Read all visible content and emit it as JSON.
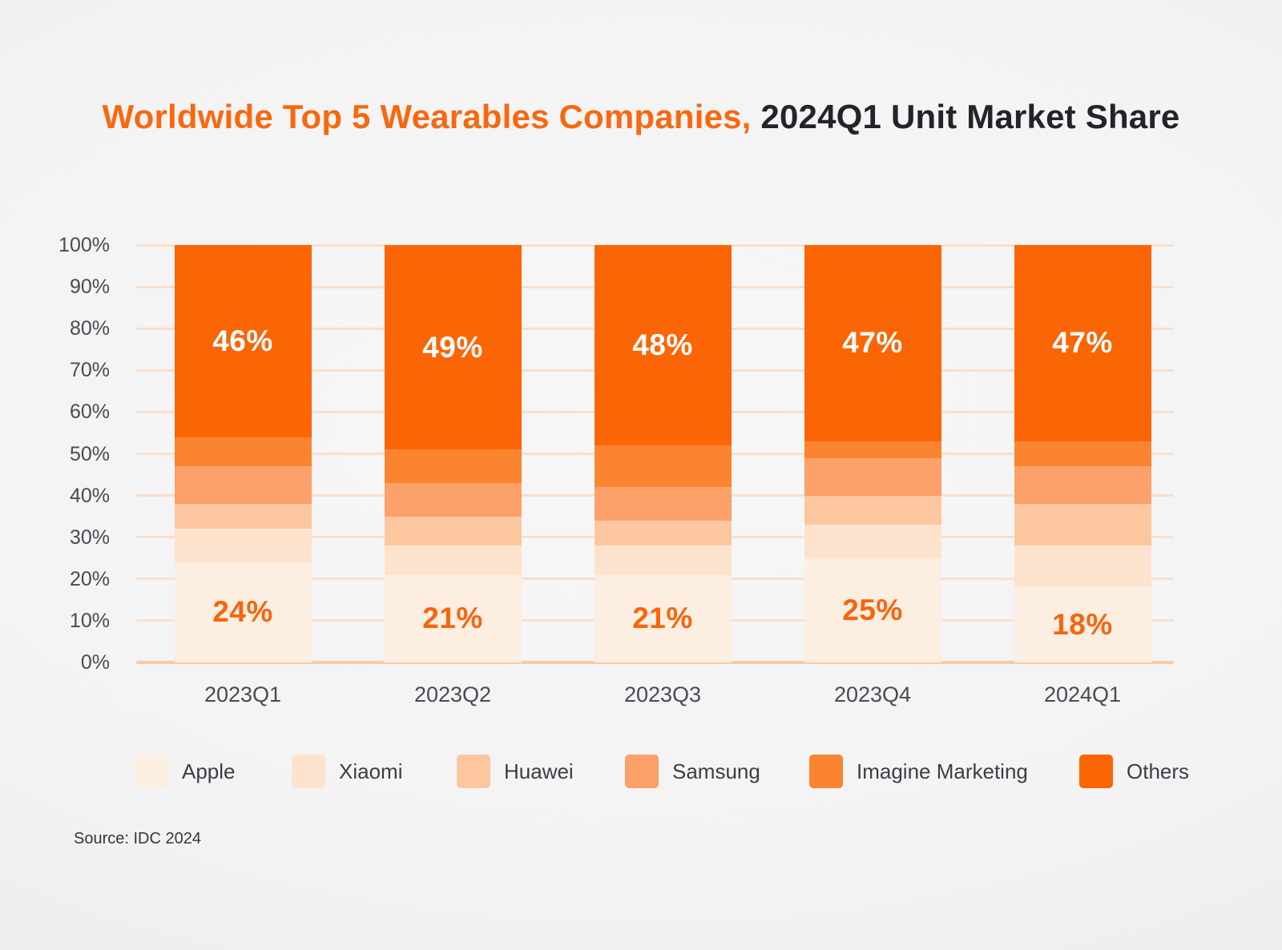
{
  "title": {
    "highlight": "Worldwide Top 5 Wearables Companies,",
    "rest": " 2024Q1 Unit Market Share"
  },
  "source": "Source: IDC 2024",
  "colors": {
    "title_accent": "#f8680f",
    "title_text": "#232329",
    "axis_label": "#4a4a52",
    "grid_line": "#fbdfc8",
    "zero_line": "#fbc9a4",
    "legend_text": "#3d3d45",
    "source_text": "#35353d",
    "apple_value_label": "#f8650c",
    "others_value_label": "#ffffff"
  },
  "chart_data": {
    "type": "bar",
    "stacked": true,
    "grid": true,
    "legend_position": "bottom",
    "title": "Worldwide Top 5 Wearables Companies, 2024Q1 Unit Market Share",
    "categories": [
      "2023Q1",
      "2023Q2",
      "2023Q3",
      "2023Q4",
      "2024Q1"
    ],
    "y_axis": {
      "min": 0,
      "max": 100,
      "tick_step": 10,
      "tick_labels": [
        "0%",
        "10%",
        "20%",
        "30%",
        "40%",
        "50%",
        "60%",
        "70%",
        "80%",
        "90%",
        "100%"
      ]
    },
    "series": [
      {
        "name": "Apple",
        "color": "#fceee1",
        "values": [
          24,
          21,
          21,
          25,
          18
        ],
        "labels": [
          "24%",
          "21%",
          "21%",
          "25%",
          "18%"
        ],
        "label_color": "#f8650c"
      },
      {
        "name": "Xiaomi",
        "color": "#fde3cd",
        "values": [
          8,
          7,
          7,
          8,
          10
        ]
      },
      {
        "name": "Huawei",
        "color": "#fcc79f",
        "values": [
          6,
          7,
          6,
          7,
          10
        ]
      },
      {
        "name": "Samsung",
        "color": "#fca169",
        "values": [
          9,
          8,
          8,
          9,
          9
        ]
      },
      {
        "name": "Imagine Marketing",
        "color": "#fb8431",
        "values": [
          7,
          8,
          10,
          4,
          6
        ]
      },
      {
        "name": "Others",
        "color": "#fa6505",
        "values": [
          46,
          49,
          48,
          47,
          47
        ],
        "labels": [
          "46%",
          "49%",
          "48%",
          "47%",
          "47%"
        ],
        "label_color": "#ffffff"
      }
    ]
  }
}
